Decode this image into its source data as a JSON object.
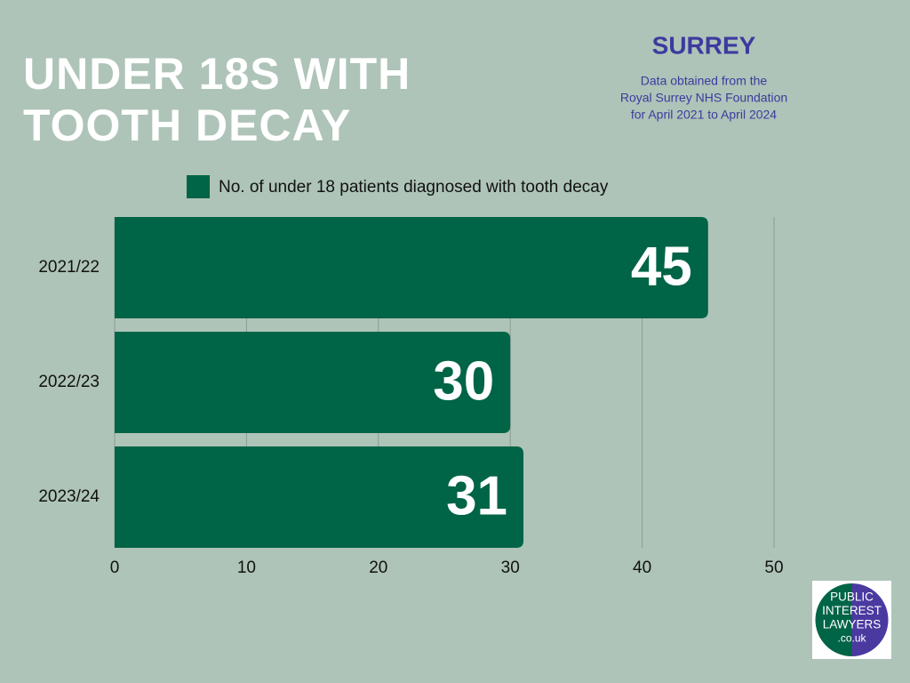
{
  "chart_data": {
    "type": "hbar",
    "title": "UNDER 18S WITH TOOTH DECAY",
    "subtitle": "SURREY",
    "source_lines": [
      "Data obtained from the",
      "Royal Surrey NHS Foundation",
      "for April 2021 to April 2024"
    ],
    "categories": [
      "2021/22",
      "2022/23",
      "2023/24"
    ],
    "series": [
      {
        "name": "No. of under 18 patients diagnosed with tooth decay",
        "color": "#006446",
        "values": [
          45,
          30,
          31
        ]
      }
    ],
    "xlim": [
      0,
      50
    ],
    "xticks": [
      0,
      10,
      20,
      30,
      40,
      50
    ],
    "grid": true
  },
  "logo": {
    "lines": [
      "PUBLIC",
      "INTEREST",
      "LAWYERS",
      ".co.uk"
    ]
  }
}
